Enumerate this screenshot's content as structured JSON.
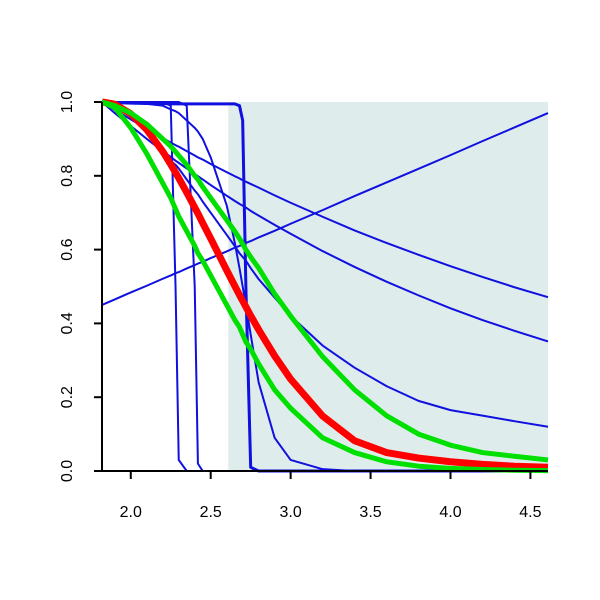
{
  "chart_data": {
    "type": "line",
    "x": [
      1.82,
      1.9,
      2.0,
      2.1,
      2.2,
      2.25,
      2.28,
      2.3,
      2.35,
      2.4,
      2.42,
      2.45,
      2.5,
      2.6,
      2.65,
      2.68,
      2.7,
      2.72,
      2.75,
      2.8,
      2.9,
      3.0,
      3.2,
      3.4,
      3.6,
      3.8,
      4.0,
      4.2,
      4.4,
      4.61
    ],
    "series": [
      {
        "color": "#1010e0",
        "line_width": 2,
        "values": [
          1,
          1,
          1,
          1,
          1,
          0.99,
          0.5,
          0.03,
          0,
          0,
          0,
          0,
          0,
          0,
          0,
          0,
          0,
          0,
          0,
          0,
          0,
          0,
          0,
          0,
          0,
          0,
          0,
          0,
          0,
          0
        ]
      },
      {
        "color": "#1010e0",
        "line_width": 2,
        "values": [
          1,
          1,
          1,
          1,
          1,
          1,
          1,
          1,
          0.99,
          0.5,
          0.02,
          0,
          0,
          0,
          0,
          0,
          0,
          0,
          0,
          0,
          0,
          0,
          0,
          0,
          0,
          0,
          0,
          0,
          0,
          0
        ]
      },
      {
        "color": "#1010e0",
        "line_width": 3,
        "values": [
          1,
          0.998,
          0.997,
          0.996,
          0.996,
          0.995,
          0.995,
          0.995,
          0.995,
          0.995,
          0.995,
          0.995,
          0.995,
          0.995,
          0.995,
          0.99,
          0.95,
          0.5,
          0.01,
          0,
          0,
          0,
          0,
          0,
          0,
          0,
          0,
          0,
          0,
          0
        ]
      },
      {
        "color": "#1010e0",
        "line_width": 2,
        "values": [
          1,
          1,
          1,
          0.995,
          0.99,
          0.98,
          0.975,
          0.97,
          0.95,
          0.93,
          0.92,
          0.9,
          0.85,
          0.72,
          0.62,
          0.55,
          0.5,
          0.45,
          0.37,
          0.24,
          0.09,
          0.03,
          0.005,
          0,
          0,
          0,
          0,
          0,
          0,
          0
        ]
      },
      {
        "color": "#1010e0",
        "line_width": 2,
        "values": [
          1,
          0.99,
          0.96,
          0.92,
          0.87,
          0.84,
          0.83,
          0.82,
          0.79,
          0.76,
          0.75,
          0.73,
          0.7,
          0.64,
          0.61,
          0.59,
          0.58,
          0.57,
          0.55,
          0.52,
          0.47,
          0.42,
          0.34,
          0.28,
          0.23,
          0.19,
          0.165,
          0.15,
          0.135,
          0.12
        ]
      },
      {
        "color": "#1010e0",
        "line_width": 2,
        "values": [
          1,
          0.979,
          0.953,
          0.927,
          0.902,
          0.89,
          0.883,
          0.879,
          0.867,
          0.855,
          0.85,
          0.844,
          0.832,
          0.81,
          0.799,
          0.793,
          0.788,
          0.784,
          0.778,
          0.768,
          0.747,
          0.727,
          0.689,
          0.652,
          0.618,
          0.586,
          0.555,
          0.526,
          0.498,
          0.471
        ]
      },
      {
        "color": "#1010e0",
        "line_width": 2,
        "values": [
          1,
          0.97,
          0.935,
          0.9,
          0.867,
          0.851,
          0.841,
          0.835,
          0.82,
          0.804,
          0.799,
          0.79,
          0.775,
          0.746,
          0.732,
          0.724,
          0.719,
          0.714,
          0.705,
          0.692,
          0.667,
          0.643,
          0.596,
          0.553,
          0.513,
          0.476,
          0.441,
          0.409,
          0.38,
          0.351
        ]
      },
      {
        "color": "#1010e0",
        "line_width": 2,
        "values": [
          0.45,
          0.465,
          0.484,
          0.502,
          0.521,
          0.53,
          0.536,
          0.539,
          0.549,
          0.558,
          0.562,
          0.567,
          0.577,
          0.595,
          0.605,
          0.61,
          0.614,
          0.618,
          0.623,
          0.633,
          0.651,
          0.67,
          0.707,
          0.745,
          0.782,
          0.819,
          0.856,
          0.894,
          0.931,
          0.97
        ]
      },
      {
        "color": "#ff0000",
        "line_width": 7,
        "values": [
          1,
          0.994,
          0.968,
          0.925,
          0.866,
          0.831,
          0.809,
          0.794,
          0.755,
          0.714,
          0.698,
          0.672,
          0.63,
          0.544,
          0.502,
          0.477,
          0.461,
          0.445,
          0.421,
          0.383,
          0.312,
          0.249,
          0.149,
          0.082,
          0.05,
          0.035,
          0.025,
          0.018,
          0.013,
          0.01
        ]
      },
      {
        "color": "#00e000",
        "line_width": 5,
        "values": [
          1,
          0.99,
          0.97,
          0.94,
          0.9,
          0.88,
          0.865,
          0.855,
          0.83,
          0.8,
          0.79,
          0.77,
          0.74,
          0.68,
          0.65,
          0.63,
          0.615,
          0.6,
          0.58,
          0.55,
          0.48,
          0.42,
          0.31,
          0.22,
          0.15,
          0.1,
          0.07,
          0.05,
          0.04,
          0.03
        ]
      },
      {
        "color": "#00e000",
        "line_width": 5,
        "values": [
          1,
          0.985,
          0.93,
          0.86,
          0.78,
          0.74,
          0.71,
          0.69,
          0.65,
          0.61,
          0.59,
          0.57,
          0.53,
          0.45,
          0.41,
          0.39,
          0.37,
          0.35,
          0.33,
          0.29,
          0.22,
          0.17,
          0.09,
          0.05,
          0.025,
          0.013,
          0.007,
          0.004,
          0.002,
          0.001
        ]
      }
    ],
    "shaded_region": {
      "xlim": [
        2.61,
        4.61
      ],
      "color": "#dfecec"
    },
    "xlim": [
      1.82,
      4.61
    ],
    "ylim": [
      0,
      1
    ],
    "xticks": [
      {
        "value": 2,
        "label": "2.0"
      },
      2.5,
      {
        "value": 3,
        "label": "3.0"
      },
      3.5,
      {
        "value": 4,
        "label": "4.0"
      },
      4.5
    ],
    "yticks": [
      {
        "value": 0,
        "label": "0.0"
      },
      0.2,
      0.4,
      0.6,
      0.8,
      {
        "value": 1,
        "label": "1.0"
      }
    ]
  }
}
